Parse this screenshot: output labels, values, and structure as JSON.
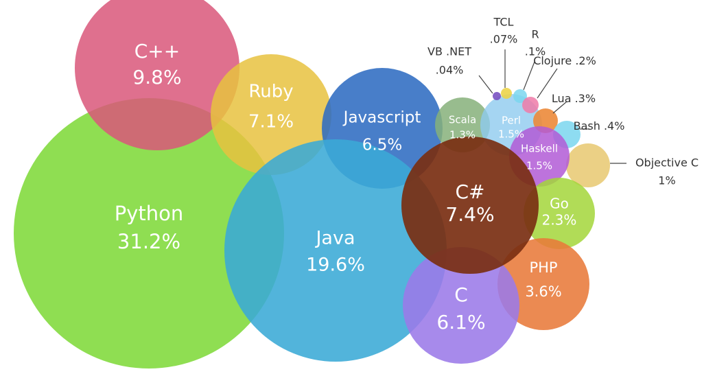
{
  "chart_data": {
    "type": "bubble",
    "title": "",
    "unit": "%",
    "series": [
      {
        "name": "Python",
        "value": 31.2,
        "display": "31.2%",
        "color": "#7fd93a"
      },
      {
        "name": "Java",
        "value": 19.6,
        "display": "19.6%",
        "color": "#3aaad6"
      },
      {
        "name": "C++",
        "value": 9.8,
        "display": "9.8%",
        "color": "#d9577a"
      },
      {
        "name": "Ruby",
        "value": 7.1,
        "display": "7.1%",
        "color": "#e8c240"
      },
      {
        "name": "Javascript",
        "value": 6.5,
        "display": "6.5%",
        "color": "#2f6cc2"
      },
      {
        "name": "C#",
        "value": 7.4,
        "display": "7.4%",
        "color": "#7a2f12"
      },
      {
        "name": "C",
        "value": 6.1,
        "display": "6.1%",
        "color": "#9b7ae8"
      },
      {
        "name": "PHP",
        "value": 3.6,
        "display": "3.6%",
        "color": "#e87a3a"
      },
      {
        "name": "Go",
        "value": 2.3,
        "display": "2.3%",
        "color": "#a3d63a"
      },
      {
        "name": "Haskell",
        "value": 1.5,
        "display": "1.5%",
        "color": "#b25ad6"
      },
      {
        "name": "Perl",
        "value": 1.5,
        "display": "1.5%",
        "color": "#8ecbef"
      },
      {
        "name": "Scala",
        "value": 1.3,
        "display": "1.3%",
        "color": "#86b07a"
      },
      {
        "name": "Objective C",
        "value": 1.0,
        "display": "1%",
        "color": "#e8c870"
      },
      {
        "name": "Bash",
        "value": 0.4,
        "display": ".4%",
        "color": "#7ad6ef"
      },
      {
        "name": "Lua",
        "value": 0.3,
        "display": ".3%",
        "color": "#ec8a3a"
      },
      {
        "name": "Clojure",
        "value": 0.2,
        "display": ".2%",
        "color": "#ef7aa8"
      },
      {
        "name": "R",
        "value": 0.1,
        "display": ".1%",
        "color": "#7ad6ef"
      },
      {
        "name": "TCL",
        "value": 0.07,
        "display": ".07%",
        "color": "#ecd44a"
      },
      {
        "name": "VB .NET",
        "value": 0.04,
        "display": ".04%",
        "color": "#7a52c2"
      }
    ]
  }
}
